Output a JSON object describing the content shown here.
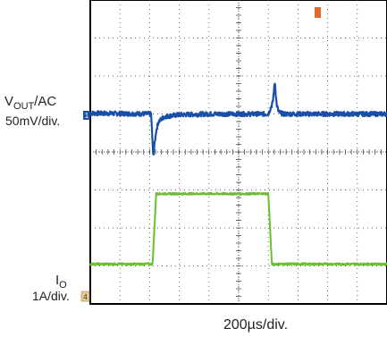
{
  "chart_data": {
    "type": "line",
    "xlabel": "200µs/div.",
    "x_unit": "div",
    "y_unit": "div",
    "xlim": [
      0,
      10
    ],
    "ylim": [
      0,
      8
    ],
    "grid": true,
    "series": [
      {
        "name_main": "V",
        "name_sub": "OUT",
        "name_suffix": "/AC",
        "scale": "50mV/div.",
        "marker": "1",
        "color": "#1a4fa8",
        "x": [
          0,
          2.05,
          2.08,
          2.12,
          2.22,
          2.3,
          2.5,
          3.0,
          4.0,
          6.0,
          6.15,
          6.22,
          6.28,
          6.35,
          6.5,
          6.9,
          8.0,
          10.0
        ],
        "y": [
          5.02,
          5.0,
          4.55,
          3.9,
          4.55,
          4.8,
          4.93,
          4.98,
          5.0,
          5.0,
          5.3,
          5.85,
          5.25,
          5.05,
          5.0,
          5.0,
          5.0,
          5.0
        ]
      },
      {
        "name_main": "I",
        "name_sub": "O",
        "name_suffix": "",
        "scale": "1A/div.",
        "marker": "4",
        "color": "#6abf2e",
        "x": [
          0,
          2.1,
          2.22,
          6.0,
          6.12,
          10.0
        ],
        "y": [
          1.05,
          1.05,
          2.9,
          2.9,
          1.05,
          1.05
        ]
      }
    ]
  }
}
